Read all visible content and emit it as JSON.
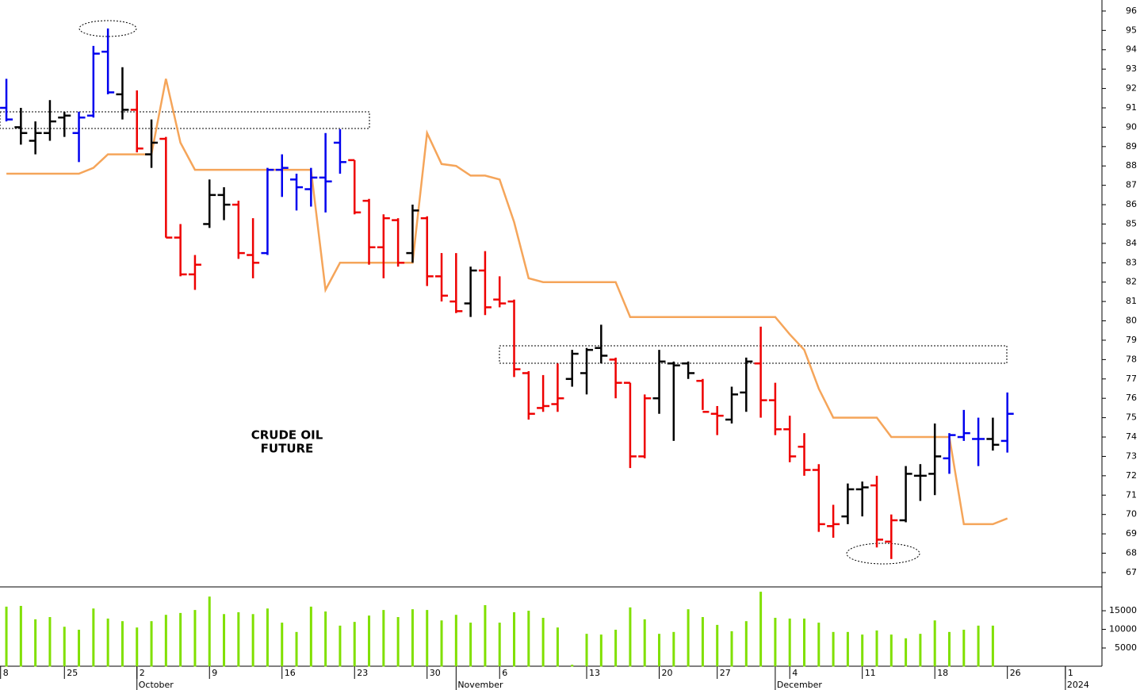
{
  "chart_data": [
    {
      "type": "ohlc",
      "xlim": [
        -0.44,
        75.52
      ],
      "ylim": [
        66.26,
        96.57
      ],
      "yticks": [
        67,
        68,
        69,
        70,
        71,
        72,
        73,
        74,
        75,
        76,
        77,
        78,
        79,
        80,
        81,
        82,
        83,
        84,
        85,
        86,
        87,
        88,
        89,
        90,
        91,
        92,
        93,
        94,
        95,
        96
      ],
      "annotations": [
        "CRUDE OIL",
        "FUTURE"
      ],
      "open": [
        91.0,
        90.0,
        89.3,
        89.7,
        90.5,
        89.7,
        90.6,
        93.9,
        91.7,
        90.9,
        88.6,
        89.4,
        84.3,
        82.4,
        85.0,
        86.5,
        86.0,
        83.4,
        83.5,
        87.8,
        87.3,
        86.8,
        87.4,
        89.2,
        88.3,
        86.2,
        83.8,
        85.2,
        83.5,
        85.3,
        82.3,
        81.0,
        80.9,
        82.6,
        81.1,
        81.0,
        77.3,
        75.5,
        75.7,
        77.0,
        77.3,
        78.6,
        78.0,
        76.8,
        73.0,
        76.0,
        77.8,
        77.8,
        76.9,
        75.2,
        74.9,
        76.3,
        77.8,
        75.9,
        74.4,
        73.5,
        72.3,
        69.4,
        69.9,
        71.3,
        71.5,
        68.6,
        69.7,
        72.0,
        72.1,
        72.9,
        74.0,
        73.9,
        73.9,
        73.8
      ],
      "high": [
        92.5,
        91.0,
        90.3,
        91.4,
        90.8,
        90.8,
        94.2,
        95.1,
        93.1,
        91.9,
        90.4,
        89.5,
        85.0,
        83.4,
        87.3,
        86.9,
        86.2,
        85.3,
        87.9,
        88.6,
        87.6,
        87.9,
        89.7,
        89.9,
        88.3,
        86.3,
        85.5,
        85.3,
        86.0,
        85.4,
        83.5,
        83.5,
        82.8,
        83.6,
        82.3,
        81.1,
        77.4,
        77.2,
        77.8,
        78.5,
        78.6,
        79.8,
        78.1,
        76.8,
        76.2,
        78.5,
        77.9,
        77.9,
        77.0,
        75.6,
        76.6,
        78.1,
        79.7,
        76.8,
        75.1,
        74.2,
        72.6,
        70.5,
        71.6,
        71.7,
        72.0,
        70.0,
        72.5,
        72.6,
        74.7,
        74.2,
        75.4,
        75.0,
        75.0,
        76.3
      ],
      "low": [
        90.3,
        89.1,
        88.6,
        89.3,
        89.5,
        88.2,
        90.5,
        91.7,
        90.4,
        88.7,
        87.9,
        84.3,
        82.3,
        81.6,
        84.8,
        85.2,
        83.2,
        82.2,
        83.4,
        86.4,
        85.7,
        85.9,
        85.6,
        87.6,
        85.5,
        82.9,
        82.2,
        82.8,
        83.0,
        81.8,
        81.0,
        80.4,
        80.2,
        80.3,
        80.7,
        77.1,
        74.9,
        75.3,
        75.3,
        76.6,
        76.2,
        77.8,
        76.0,
        72.4,
        72.9,
        75.2,
        73.8,
        77.0,
        75.4,
        74.1,
        74.7,
        75.3,
        75.0,
        74.1,
        72.7,
        72.0,
        69.1,
        68.8,
        69.5,
        69.9,
        68.3,
        67.7,
        69.6,
        70.7,
        71.0,
        72.1,
        73.8,
        72.5,
        73.3,
        73.2
      ],
      "close": [
        90.4,
        89.7,
        89.7,
        90.3,
        90.6,
        90.5,
        93.8,
        91.8,
        90.9,
        88.9,
        89.2,
        84.3,
        82.4,
        82.9,
        86.5,
        86.0,
        83.5,
        83.0,
        87.8,
        87.9,
        86.9,
        87.4,
        87.2,
        88.2,
        85.6,
        83.8,
        85.3,
        83.0,
        85.7,
        82.3,
        81.3,
        80.5,
        82.6,
        80.7,
        80.9,
        77.5,
        75.2,
        75.6,
        76.0,
        78.3,
        78.5,
        78.2,
        76.8,
        73.0,
        76.0,
        77.9,
        77.7,
        77.3,
        75.3,
        75.1,
        76.2,
        77.9,
        75.9,
        74.4,
        73.0,
        72.3,
        69.5,
        69.5,
        71.3,
        71.4,
        68.7,
        69.7,
        72.1,
        72.0,
        73.0,
        74.1,
        74.2,
        73.9,
        73.6,
        75.2
      ],
      "colors": [
        "#0000ee",
        "#000000",
        "#000000",
        "#000000",
        "#000000",
        "#0000ee",
        "#0000ee",
        "#0000ee",
        "#000000",
        "#ee0000",
        "#000000",
        "#ee0000",
        "#ee0000",
        "#ee0000",
        "#000000",
        "#000000",
        "#ee0000",
        "#ee0000",
        "#0000ee",
        "#0000ee",
        "#0000ee",
        "#0000ee",
        "#0000ee",
        "#0000ee",
        "#ee0000",
        "#ee0000",
        "#ee0000",
        "#ee0000",
        "#000000",
        "#ee0000",
        "#ee0000",
        "#ee0000",
        "#000000",
        "#ee0000",
        "#ee0000",
        "#ee0000",
        "#ee0000",
        "#ee0000",
        "#ee0000",
        "#000000",
        "#000000",
        "#000000",
        "#ee0000",
        "#ee0000",
        "#ee0000",
        "#000000",
        "#000000",
        "#000000",
        "#ee0000",
        "#ee0000",
        "#000000",
        "#000000",
        "#ee0000",
        "#ee0000",
        "#ee0000",
        "#ee0000",
        "#ee0000",
        "#ee0000",
        "#000000",
        "#000000",
        "#ee0000",
        "#ee0000",
        "#000000",
        "#000000",
        "#000000",
        "#0000ee",
        "#0000ee",
        "#0000ee",
        "#000000",
        "#0000ee"
      ],
      "overlay": {
        "color": "#f5a55a",
        "values": [
          87.6,
          87.6,
          87.6,
          87.6,
          87.6,
          87.6,
          87.9,
          88.6,
          88.6,
          88.6,
          88.6,
          92.5,
          89.2,
          87.8,
          87.8,
          87.8,
          87.8,
          87.8,
          87.8,
          87.8,
          87.8,
          87.8,
          81.6,
          83.0,
          83.0,
          83.0,
          83.0,
          83.0,
          83.0,
          89.7,
          88.1,
          88.0,
          87.5,
          87.5,
          87.3,
          85.1,
          82.2,
          82.0,
          82.0,
          82.0,
          82.0,
          82.0,
          82.0,
          80.2,
          80.2,
          80.2,
          80.2,
          80.2,
          80.2,
          80.2,
          80.2,
          80.2,
          80.2,
          80.2,
          79.3,
          78.5,
          76.5,
          75.0,
          75.0,
          75.0,
          75.0,
          74.0,
          74.0,
          74.0,
          74.0,
          74.0,
          69.5,
          69.5,
          69.5,
          69.8
        ]
      }
    },
    {
      "type": "bar",
      "color": "#80e000",
      "xlim": [
        -0.44,
        75.52
      ],
      "ylim": [
        0,
        21400
      ],
      "yticks": [
        5000,
        10000,
        15000
      ],
      "values": [
        16100,
        16300,
        12700,
        13300,
        10700,
        9900,
        15600,
        12900,
        12200,
        10500,
        12200,
        13900,
        14400,
        15200,
        18800,
        14100,
        14600,
        14100,
        15600,
        11800,
        9300,
        16100,
        14800,
        11000,
        12000,
        13700,
        15200,
        13300,
        15400,
        15200,
        12400,
        13900,
        11800,
        16500,
        11800,
        14600,
        15000,
        13100,
        10500,
        500,
        8800,
        8600,
        9900,
        15900,
        12700,
        8800,
        9300,
        15400,
        13300,
        11200,
        9500,
        12200,
        20100,
        13100,
        12900,
        12900,
        11800,
        9300,
        9300,
        8600,
        9700,
        8600,
        7600,
        8800,
        12400,
        9300,
        9900,
        11000,
        11000,
        null
      ],
      "xticks": [
        {
          "value": -0.4,
          "label": "8"
        },
        {
          "value": 4,
          "label": "25"
        },
        {
          "value": 9,
          "label": "2"
        },
        {
          "value": 14,
          "label": "9"
        },
        {
          "value": 19,
          "label": "16"
        },
        {
          "value": 24,
          "label": "23"
        },
        {
          "value": 29,
          "label": "30"
        },
        {
          "value": 34,
          "label": "6"
        },
        {
          "value": 40,
          "label": "13"
        },
        {
          "value": 45,
          "label": "20"
        },
        {
          "value": 49,
          "label": "27"
        },
        {
          "value": 54,
          "label": "4"
        },
        {
          "value": 59,
          "label": "11"
        },
        {
          "value": 64,
          "label": "18"
        },
        {
          "value": 69,
          "label": "26"
        },
        {
          "value": 73,
          "label": "1"
        }
      ],
      "month_ticks": [
        {
          "value": 9,
          "label": "October"
        },
        {
          "value": 31,
          "label": "November"
        },
        {
          "value": 53,
          "label": "December"
        },
        {
          "value": 73,
          "label": "2024"
        }
      ]
    }
  ]
}
